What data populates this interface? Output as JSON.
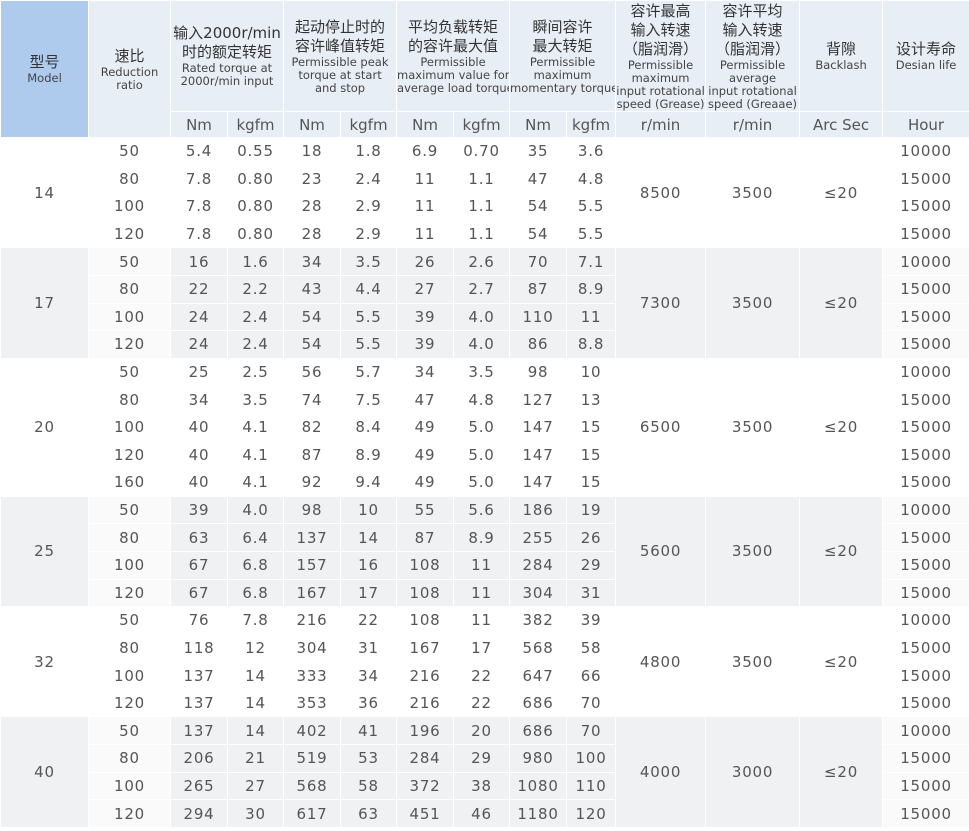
{
  "headers": [
    {
      "zh": [
        "型号"
      ],
      "en": [
        "Model"
      ]
    },
    {
      "zh": [
        "速比"
      ],
      "en": [
        "Reduction",
        "ratio"
      ]
    },
    {
      "zh": [
        "输入2000r/min",
        "时的额定转矩"
      ],
      "en": [
        "Rated torque at",
        "2000r/min input"
      ]
    },
    {
      "zh": [
        "起动停止时的",
        "容许峰值转矩"
      ],
      "en": [
        "Permissible peak",
        "torque at start",
        "and stop"
      ]
    },
    {
      "zh": [
        "平均负载转矩",
        "的容许最大值"
      ],
      "en": [
        "Permissible",
        "maximum value for",
        "average load torque"
      ]
    },
    {
      "zh": [
        "瞬间容许",
        "最大转矩"
      ],
      "en": [
        "Permissible",
        "maximum",
        "momentary torque"
      ]
    },
    {
      "zh": [
        "容许最高",
        "输入转速",
        "（脂润滑）"
      ],
      "en": [
        "Permissible",
        "maximum",
        "input rotational",
        "speed (Grease)"
      ]
    },
    {
      "zh": [
        "容许平均",
        "输入转速",
        "（脂润滑）"
      ],
      "en": [
        "Permissible",
        "average",
        "input rotational",
        "speed (Greaae)"
      ]
    },
    {
      "zh": [
        "背隙"
      ],
      "en": [
        "Backlash"
      ]
    },
    {
      "zh": [
        "设计寿命"
      ],
      "en": [
        "Desian life"
      ]
    }
  ],
  "units": [
    "Nm",
    "kgfm",
    "Nm",
    "kgfm",
    "Nm",
    "kgfm",
    "Nm",
    "kgfm",
    "r/min",
    "r/min",
    "Arc Sec",
    "Hour"
  ],
  "groups": [
    {
      "model": "14",
      "max_speed": "8500",
      "avg_speed": "3500",
      "backlash": "≤20",
      "rows": [
        [
          "50",
          "5.4",
          "0.55",
          "18",
          "1.8",
          "6.9",
          "0.70",
          "35",
          "3.6",
          "10000"
        ],
        [
          "80",
          "7.8",
          "0.80",
          "23",
          "2.4",
          "11",
          "1.1",
          "47",
          "4.8",
          "15000"
        ],
        [
          "100",
          "7.8",
          "0.80",
          "28",
          "2.9",
          "11",
          "1.1",
          "54",
          "5.5",
          "15000"
        ],
        [
          "120",
          "7.8",
          "0.80",
          "28",
          "2.9",
          "11",
          "1.1",
          "54",
          "5.5",
          "15000"
        ]
      ]
    },
    {
      "model": "17",
      "max_speed": "7300",
      "avg_speed": "3500",
      "backlash": "≤20",
      "rows": [
        [
          "50",
          "16",
          "1.6",
          "34",
          "3.5",
          "26",
          "2.6",
          "70",
          "7.1",
          "10000"
        ],
        [
          "80",
          "22",
          "2.2",
          "43",
          "4.4",
          "27",
          "2.7",
          "87",
          "8.9",
          "15000"
        ],
        [
          "100",
          "24",
          "2.4",
          "54",
          "5.5",
          "39",
          "4.0",
          "110",
          "11",
          "15000"
        ],
        [
          "120",
          "24",
          "2.4",
          "54",
          "5.5",
          "39",
          "4.0",
          "86",
          "8.8",
          "15000"
        ]
      ]
    },
    {
      "model": "20",
      "max_speed": "6500",
      "avg_speed": "3500",
      "backlash": "≤20",
      "rows": [
        [
          "50",
          "25",
          "2.5",
          "56",
          "5.7",
          "34",
          "3.5",
          "98",
          "10",
          "10000"
        ],
        [
          "80",
          "34",
          "3.5",
          "74",
          "7.5",
          "47",
          "4.8",
          "127",
          "13",
          "15000"
        ],
        [
          "100",
          "40",
          "4.1",
          "82",
          "8.4",
          "49",
          "5.0",
          "147",
          "15",
          "15000"
        ],
        [
          "120",
          "40",
          "4.1",
          "87",
          "8.9",
          "49",
          "5.0",
          "147",
          "15",
          "15000"
        ],
        [
          "160",
          "40",
          "4.1",
          "92",
          "9.4",
          "49",
          "5.0",
          "147",
          "15",
          "15000"
        ]
      ]
    },
    {
      "model": "25",
      "max_speed": "5600",
      "avg_speed": "3500",
      "backlash": "≤20",
      "rows": [
        [
          "50",
          "39",
          "4.0",
          "98",
          "10",
          "55",
          "5.6",
          "186",
          "19",
          "10000"
        ],
        [
          "80",
          "63",
          "6.4",
          "137",
          "14",
          "87",
          "8.9",
          "255",
          "26",
          "15000"
        ],
        [
          "100",
          "67",
          "6.8",
          "157",
          "16",
          "108",
          "11",
          "284",
          "29",
          "15000"
        ],
        [
          "120",
          "67",
          "6.8",
          "167",
          "17",
          "108",
          "11",
          "304",
          "31",
          "15000"
        ]
      ]
    },
    {
      "model": "32",
      "max_speed": "4800",
      "avg_speed": "3500",
      "backlash": "≤20",
      "rows": [
        [
          "50",
          "76",
          "7.8",
          "216",
          "22",
          "108",
          "11",
          "382",
          "39",
          "10000"
        ],
        [
          "80",
          "118",
          "12",
          "304",
          "31",
          "167",
          "17",
          "568",
          "58",
          "15000"
        ],
        [
          "100",
          "137",
          "14",
          "333",
          "34",
          "216",
          "22",
          "647",
          "66",
          "15000"
        ],
        [
          "120",
          "137",
          "14",
          "353",
          "36",
          "216",
          "22",
          "686",
          "70",
          "15000"
        ]
      ]
    },
    {
      "model": "40",
      "max_speed": "4000",
      "avg_speed": "3000",
      "backlash": "≤20",
      "rows": [
        [
          "50",
          "137",
          "14",
          "402",
          "41",
          "196",
          "20",
          "686",
          "70",
          "10000"
        ],
        [
          "80",
          "206",
          "21",
          "519",
          "53",
          "284",
          "29",
          "980",
          "100",
          "15000"
        ],
        [
          "100",
          "265",
          "27",
          "568",
          "58",
          "372",
          "38",
          "1080",
          "110",
          "15000"
        ],
        [
          "120",
          "294",
          "30",
          "617",
          "63",
          "451",
          "46",
          "1180",
          "120",
          "15000"
        ]
      ]
    }
  ]
}
